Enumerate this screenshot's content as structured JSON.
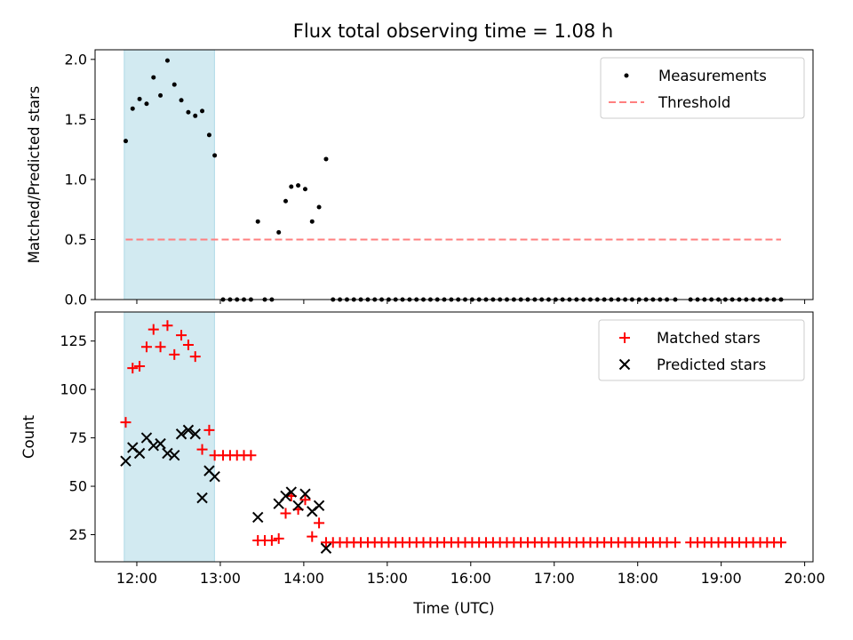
{
  "figure": {
    "title": "Flux total observing time = 1.08 h"
  },
  "colors": {
    "shade": "#add8e6",
    "threshold": "#ff7f7f",
    "matched": "#ff0000",
    "predicted": "#000000",
    "measurement": "#000000"
  },
  "chart_data": [
    {
      "type": "scatter",
      "ylabel": "Matched/Predicted stars",
      "xlim": [
        11.5,
        20.1
      ],
      "ylim": [
        0,
        2.08
      ],
      "yticks": [
        "0.0",
        "0.5",
        "1.0",
        "1.5",
        "2.0"
      ],
      "shaded_x": [
        11.85,
        12.93
      ],
      "legend": {
        "placement": "upper-right",
        "entries": [
          "Measurements",
          "Threshold"
        ]
      },
      "series": [
        {
          "name": "Measurements",
          "marker": "dot",
          "x": [
            11.867,
            11.95,
            12.033,
            12.117,
            12.2,
            12.283,
            12.367,
            12.45,
            12.533,
            12.617,
            12.7,
            12.783,
            12.867,
            12.933,
            13.033,
            13.117,
            13.2,
            13.283,
            13.367,
            13.45,
            13.533,
            13.617,
            13.7,
            13.783,
            13.85,
            13.933,
            14.017,
            14.1,
            14.183,
            14.267,
            14.35,
            14.433,
            14.517,
            14.6,
            14.683,
            14.767,
            14.85,
            14.933,
            15.017,
            15.1,
            15.183,
            15.267,
            15.35,
            15.433,
            15.517,
            15.6,
            15.683,
            15.767,
            15.85,
            15.933,
            16.017,
            16.1,
            16.183,
            16.267,
            16.35,
            16.433,
            16.517,
            16.6,
            16.683,
            16.767,
            16.85,
            16.933,
            17.017,
            17.1,
            17.183,
            17.267,
            17.35,
            17.433,
            17.517,
            17.6,
            17.683,
            17.767,
            17.85,
            17.933,
            18.017,
            18.1,
            18.183,
            18.267,
            18.35,
            18.45,
            18.633,
            18.717,
            18.8,
            18.883,
            18.967,
            19.05,
            19.133,
            19.217,
            19.3,
            19.383,
            19.467,
            19.55,
            19.633,
            19.717
          ],
          "y": [
            1.32,
            1.59,
            1.67,
            1.63,
            1.85,
            1.7,
            1.99,
            1.79,
            1.66,
            1.56,
            1.53,
            1.57,
            1.37,
            1.2,
            0,
            0,
            0,
            0,
            0,
            0.65,
            0,
            0,
            0.56,
            0.82,
            0.94,
            0.95,
            0.92,
            0.65,
            0.77,
            1.17,
            0,
            0,
            0,
            0,
            0,
            0,
            0,
            0,
            0,
            0,
            0,
            0,
            0,
            0,
            0,
            0,
            0,
            0,
            0,
            0,
            0,
            0,
            0,
            0,
            0,
            0,
            0,
            0,
            0,
            0,
            0,
            0,
            0,
            0,
            0,
            0,
            0,
            0,
            0,
            0,
            0,
            0,
            0,
            0,
            0,
            0,
            0,
            0,
            0,
            0,
            0,
            0,
            0,
            0,
            0,
            0,
            0,
            0,
            0,
            0,
            0,
            0,
            0,
            0
          ]
        },
        {
          "name": "Threshold",
          "type": "line",
          "style": "dashed",
          "x": [
            11.867,
            19.717
          ],
          "y": [
            0.5,
            0.5
          ]
        }
      ]
    },
    {
      "type": "scatter",
      "ylabel": "Count",
      "xlabel": "Time (UTC)",
      "xlim": [
        11.5,
        20.1
      ],
      "ylim": [
        11,
        140
      ],
      "xticks": [
        "12:00",
        "13:00",
        "14:00",
        "15:00",
        "16:00",
        "17:00",
        "18:00",
        "19:00",
        "20:00"
      ],
      "xtick_values": [
        12,
        13,
        14,
        15,
        16,
        17,
        18,
        19,
        20
      ],
      "yticks": [
        "25",
        "50",
        "75",
        "100",
        "125"
      ],
      "ytick_values": [
        25,
        50,
        75,
        100,
        125
      ],
      "shaded_x": [
        11.85,
        12.93
      ],
      "legend": {
        "placement": "upper-right",
        "entries": [
          "Matched stars",
          "Predicted stars"
        ]
      },
      "series": [
        {
          "name": "Matched stars",
          "marker": "plus",
          "x": [
            11.867,
            11.95,
            12.033,
            12.117,
            12.2,
            12.283,
            12.367,
            12.45,
            12.533,
            12.617,
            12.7,
            12.783,
            12.867,
            12.933,
            13.033,
            13.117,
            13.2,
            13.283,
            13.367,
            13.45,
            13.533,
            13.617,
            13.7,
            13.783,
            13.85,
            13.933,
            14.017,
            14.1,
            14.183,
            14.267,
            14.35,
            14.433,
            14.517,
            14.6,
            14.683,
            14.767,
            14.85,
            14.933,
            15.017,
            15.1,
            15.183,
            15.267,
            15.35,
            15.433,
            15.517,
            15.6,
            15.683,
            15.767,
            15.85,
            15.933,
            16.017,
            16.1,
            16.183,
            16.267,
            16.35,
            16.433,
            16.517,
            16.6,
            16.683,
            16.767,
            16.85,
            16.933,
            17.017,
            17.1,
            17.183,
            17.267,
            17.35,
            17.433,
            17.517,
            17.6,
            17.683,
            17.767,
            17.85,
            17.933,
            18.017,
            18.1,
            18.183,
            18.267,
            18.35,
            18.45,
            18.633,
            18.717,
            18.8,
            18.883,
            18.967,
            19.05,
            19.133,
            19.217,
            19.3,
            19.383,
            19.467,
            19.55,
            19.633,
            19.717
          ],
          "y": [
            83,
            111,
            112,
            122,
            131,
            122,
            133,
            118,
            128,
            123,
            117,
            69,
            79,
            66,
            66,
            66,
            66,
            66,
            66,
            22,
            22,
            22,
            23,
            36,
            45,
            38,
            43,
            24,
            31,
            21,
            21,
            21,
            21,
            21,
            21,
            21,
            21,
            21,
            21,
            21,
            21,
            21,
            21,
            21,
            21,
            21,
            21,
            21,
            21,
            21,
            21,
            21,
            21,
            21,
            21,
            21,
            21,
            21,
            21,
            21,
            21,
            21,
            21,
            21,
            21,
            21,
            21,
            21,
            21,
            21,
            21,
            21,
            21,
            21,
            21,
            21,
            21,
            21,
            21,
            21,
            21,
            21,
            21,
            21,
            21,
            21,
            21,
            21,
            21,
            21,
            21,
            21,
            21,
            21
          ]
        },
        {
          "name": "Predicted stars",
          "marker": "x",
          "x": [
            11.867,
            11.95,
            12.033,
            12.117,
            12.2,
            12.283,
            12.367,
            12.45,
            12.533,
            12.617,
            12.7,
            12.783,
            12.867,
            12.933,
            13.45,
            13.7,
            13.783,
            13.85,
            13.933,
            14.017,
            14.1,
            14.183,
            14.267
          ],
          "y": [
            63,
            70,
            67,
            75,
            71,
            72,
            67,
            66,
            77,
            79,
            77,
            44,
            58,
            55,
            34,
            41,
            45,
            47,
            40,
            46,
            37,
            40,
            18
          ]
        }
      ]
    }
  ]
}
